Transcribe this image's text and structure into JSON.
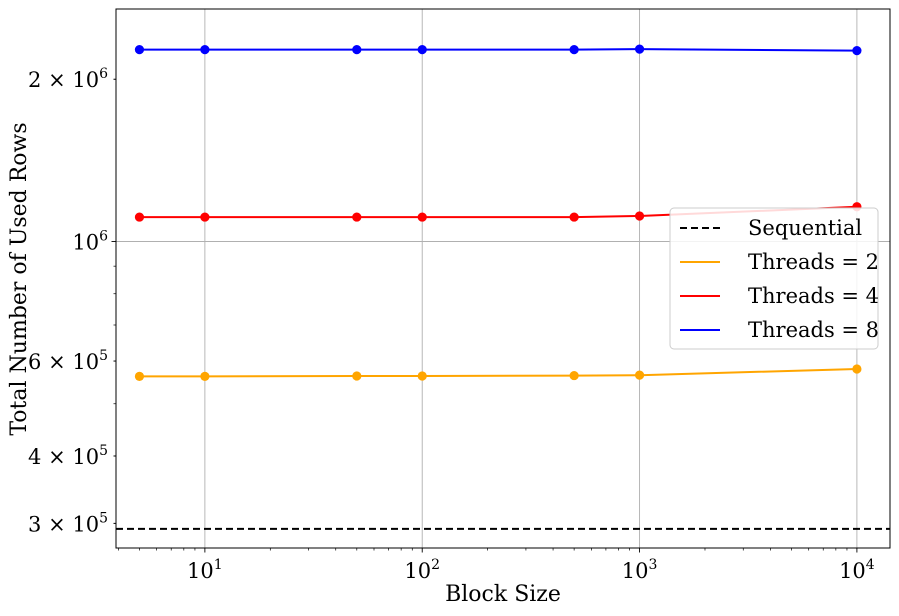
{
  "chart_data": {
    "type": "line",
    "title": "",
    "xlabel": "Block Size",
    "ylabel": "Total Number of Used Rows",
    "x_scale": "log",
    "y_scale": "log",
    "xlim": [
      3.9,
      14200
    ],
    "ylim": [
      270000,
      2700000
    ],
    "grid": true,
    "legend_position": "center-right",
    "x_ticks": [
      {
        "value": 10,
        "base": "10",
        "exp": "1"
      },
      {
        "value": 100,
        "base": "10",
        "exp": "2"
      },
      {
        "value": 1000,
        "base": "10",
        "exp": "3"
      },
      {
        "value": 10000,
        "base": "10",
        "exp": "4"
      }
    ],
    "y_ticks": [
      {
        "value": 300000,
        "mant": "3 × 10",
        "exp": "5",
        "grid": false
      },
      {
        "value": 400000,
        "mant": "4 × 10",
        "exp": "5",
        "grid": false
      },
      {
        "value": 600000,
        "mant": "6 × 10",
        "exp": "5",
        "grid": false
      },
      {
        "value": 1000000,
        "mant": "10",
        "exp": "6",
        "grid": true
      },
      {
        "value": 2000000,
        "mant": "2 × 10",
        "exp": "6",
        "grid": false
      }
    ],
    "x": [
      5,
      10,
      50,
      100,
      500,
      1000,
      10000
    ],
    "reference_lines": [
      {
        "name": "Sequential",
        "y": 293000,
        "color": "#000000",
        "dash": "dashed"
      }
    ],
    "series": [
      {
        "name": "Threads = 2",
        "color": "#FFA500",
        "values": [
          562000,
          562000,
          563000,
          563000,
          564000,
          565000,
          580000
        ]
      },
      {
        "name": "Threads = 4",
        "color": "#FF0000",
        "values": [
          1110000,
          1110000,
          1110000,
          1110000,
          1110000,
          1115000,
          1160000
        ]
      },
      {
        "name": "Threads = 8",
        "color": "#0000FF",
        "values": [
          2270000,
          2270000,
          2270000,
          2270000,
          2270000,
          2275000,
          2260000
        ]
      }
    ]
  }
}
